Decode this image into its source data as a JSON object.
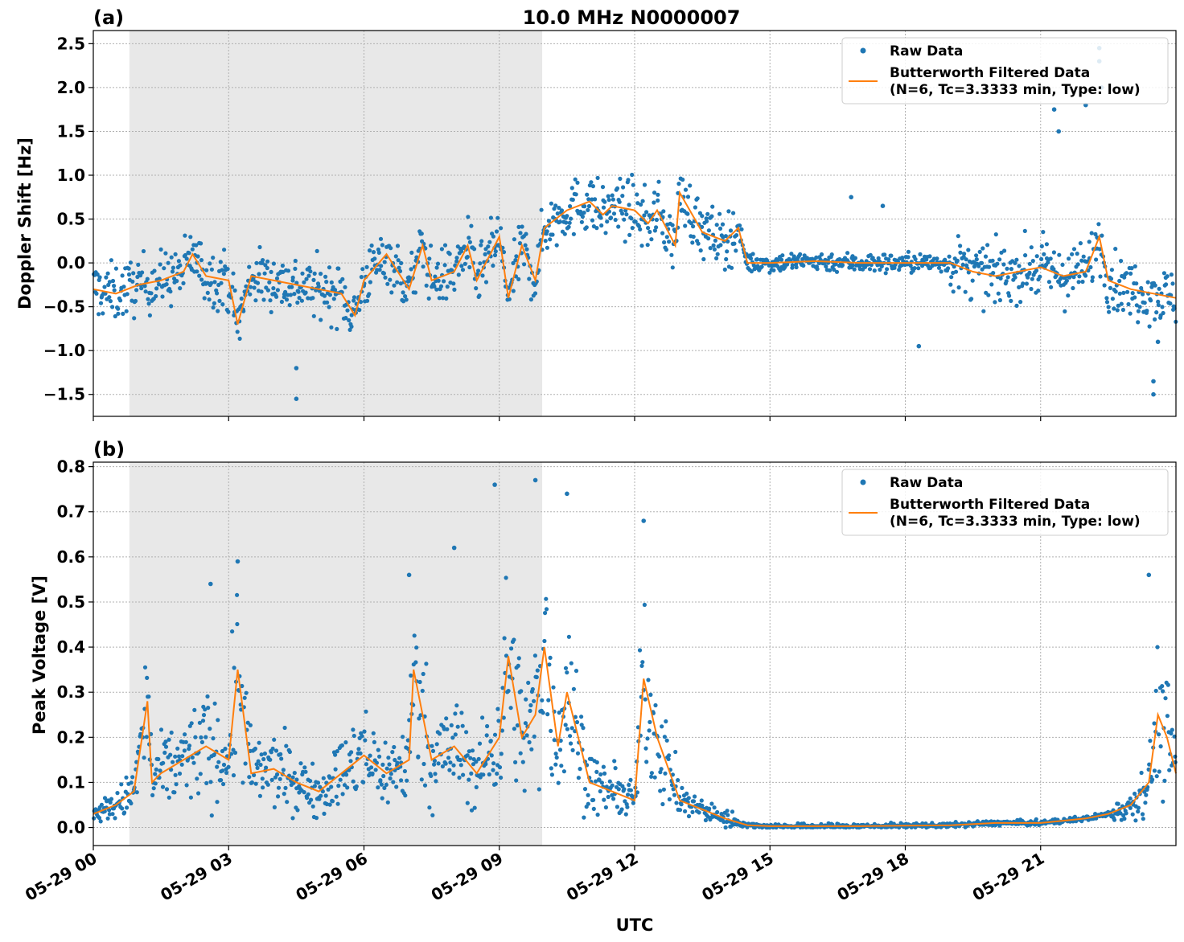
{
  "figure": {
    "title": "10.0 MHz N0000007",
    "xlabel": "UTC"
  },
  "colors": {
    "raw": "#1f77b4",
    "filtered": "#ff7f0e",
    "night_shade": "#e8e8e8",
    "grid": "#b0b0b0"
  },
  "chart_data": [
    {
      "type": "scatter",
      "panel_label": "(a)",
      "ylabel": "Doppler Shift [Hz]",
      "xlim_hours": [
        0,
        24
      ],
      "ylim": [
        -1.75,
        2.65
      ],
      "yticks": [
        -1.5,
        -1.0,
        -0.5,
        0.0,
        0.5,
        1.0,
        1.5,
        2.0,
        2.5
      ],
      "ytick_labels": [
        "−1.5",
        "−1.0",
        "−0.5",
        "0.0",
        "0.5",
        "1.0",
        "1.5",
        "2.0",
        "2.5"
      ],
      "shaded_interval_hours": [
        0.8,
        9.95
      ],
      "grid": true,
      "legend": {
        "placement": "top-right",
        "raw_label": "Raw Data",
        "filtered_label_line1": "Butterworth Filtered Data",
        "filtered_label_line2": "(N=6, Tc=3.3333 min, Type: low)"
      },
      "series": [
        {
          "name": "Butterworth Filtered Data",
          "x_hours": [
            0.0,
            0.5,
            1.0,
            1.5,
            2.0,
            2.2,
            2.5,
            3.0,
            3.2,
            3.5,
            4.0,
            4.5,
            5.0,
            5.5,
            5.8,
            6.0,
            6.5,
            7.0,
            7.3,
            7.5,
            8.0,
            8.3,
            8.5,
            9.0,
            9.2,
            9.5,
            9.8,
            10.0,
            10.5,
            11.0,
            11.3,
            11.5,
            12.0,
            12.3,
            12.5,
            12.9,
            13.0,
            13.5,
            14.0,
            14.3,
            14.5,
            15.0,
            16.0,
            17.0,
            18.0,
            19.0,
            19.5,
            20.0,
            20.5,
            21.0,
            21.5,
            22.0,
            22.3,
            22.5,
            23.0,
            23.5,
            24.0
          ],
          "y": [
            -0.3,
            -0.35,
            -0.25,
            -0.2,
            -0.1,
            0.1,
            -0.15,
            -0.2,
            -0.7,
            -0.15,
            -0.2,
            -0.25,
            -0.3,
            -0.35,
            -0.6,
            -0.2,
            0.1,
            -0.3,
            0.2,
            -0.2,
            -0.1,
            0.2,
            -0.2,
            0.3,
            -0.4,
            0.2,
            -0.2,
            0.4,
            0.6,
            0.7,
            0.55,
            0.65,
            0.6,
            0.45,
            0.6,
            0.2,
            0.8,
            0.35,
            0.25,
            0.4,
            0.0,
            0.0,
            0.02,
            0.0,
            0.0,
            0.0,
            -0.1,
            -0.15,
            -0.1,
            -0.05,
            -0.15,
            -0.1,
            0.3,
            -0.2,
            -0.3,
            -0.35,
            -0.4
          ]
        },
        {
          "name": "Raw Data",
          "outliers_x_hours": [
            4.5,
            4.5,
            21.3,
            21.4,
            22.0,
            22.3,
            22.3,
            22.35,
            23.5,
            23.5,
            18.3,
            16.8,
            17.5,
            23.6
          ],
          "outliers_y": [
            -1.55,
            -1.2,
            1.75,
            1.5,
            1.8,
            2.45,
            2.3,
            2.0,
            -1.5,
            -1.35,
            -0.95,
            0.75,
            0.65,
            -0.9
          ]
        }
      ]
    },
    {
      "type": "scatter",
      "panel_label": "(b)",
      "ylabel": "Peak Voltage [V]",
      "xlim_hours": [
        0,
        24
      ],
      "ylim": [
        -0.04,
        0.81
      ],
      "yticks": [
        0.0,
        0.1,
        0.2,
        0.3,
        0.4,
        0.5,
        0.6,
        0.7,
        0.8
      ],
      "ytick_labels": [
        "0.0",
        "0.1",
        "0.2",
        "0.3",
        "0.4",
        "0.5",
        "0.6",
        "0.7",
        "0.8"
      ],
      "shaded_interval_hours": [
        0.8,
        9.95
      ],
      "grid": true,
      "legend": {
        "placement": "top-right",
        "raw_label": "Raw Data",
        "filtered_label_line1": "Butterworth Filtered Data",
        "filtered_label_line2": "(N=6, Tc=3.3333 min, Type: low)"
      },
      "series": [
        {
          "name": "Butterworth Filtered Data",
          "x_hours": [
            0.0,
            0.5,
            0.9,
            1.2,
            1.3,
            1.5,
            2.0,
            2.5,
            3.0,
            3.2,
            3.5,
            4.0,
            4.5,
            5.0,
            5.5,
            6.0,
            6.5,
            7.0,
            7.1,
            7.5,
            8.0,
            8.5,
            9.0,
            9.2,
            9.5,
            9.8,
            10.0,
            10.3,
            10.5,
            11.0,
            11.5,
            12.0,
            12.2,
            12.5,
            13.0,
            13.5,
            14.0,
            14.5,
            15.0,
            16.0,
            17.0,
            18.0,
            19.0,
            20.0,
            21.0,
            21.5,
            22.0,
            22.5,
            23.0,
            23.4,
            23.6,
            23.8,
            24.0
          ],
          "y": [
            0.03,
            0.05,
            0.08,
            0.28,
            0.1,
            0.12,
            0.15,
            0.18,
            0.15,
            0.35,
            0.12,
            0.13,
            0.1,
            0.08,
            0.12,
            0.16,
            0.12,
            0.15,
            0.35,
            0.15,
            0.18,
            0.12,
            0.2,
            0.38,
            0.2,
            0.25,
            0.4,
            0.18,
            0.3,
            0.1,
            0.08,
            0.06,
            0.33,
            0.2,
            0.06,
            0.04,
            0.02,
            0.005,
            0.003,
            0.003,
            0.003,
            0.004,
            0.005,
            0.01,
            0.01,
            0.015,
            0.02,
            0.03,
            0.05,
            0.1,
            0.25,
            0.2,
            0.12
          ]
        },
        {
          "name": "Raw Data",
          "outliers_x_hours": [
            8.9,
            9.8,
            10.5,
            12.2,
            2.6,
            3.2,
            7.0,
            8.0,
            23.4
          ],
          "outliers_y": [
            0.76,
            0.77,
            0.74,
            0.68,
            0.54,
            0.59,
            0.56,
            0.62,
            0.56
          ]
        }
      ]
    }
  ],
  "xaxis": {
    "tick_hours": [
      0,
      3,
      6,
      9,
      12,
      15,
      18,
      21
    ],
    "tick_labels": [
      "05-29 00",
      "05-29 03",
      "05-29 06",
      "05-29 09",
      "05-29 12",
      "05-29 15",
      "05-29 18",
      "05-29 21"
    ]
  }
}
